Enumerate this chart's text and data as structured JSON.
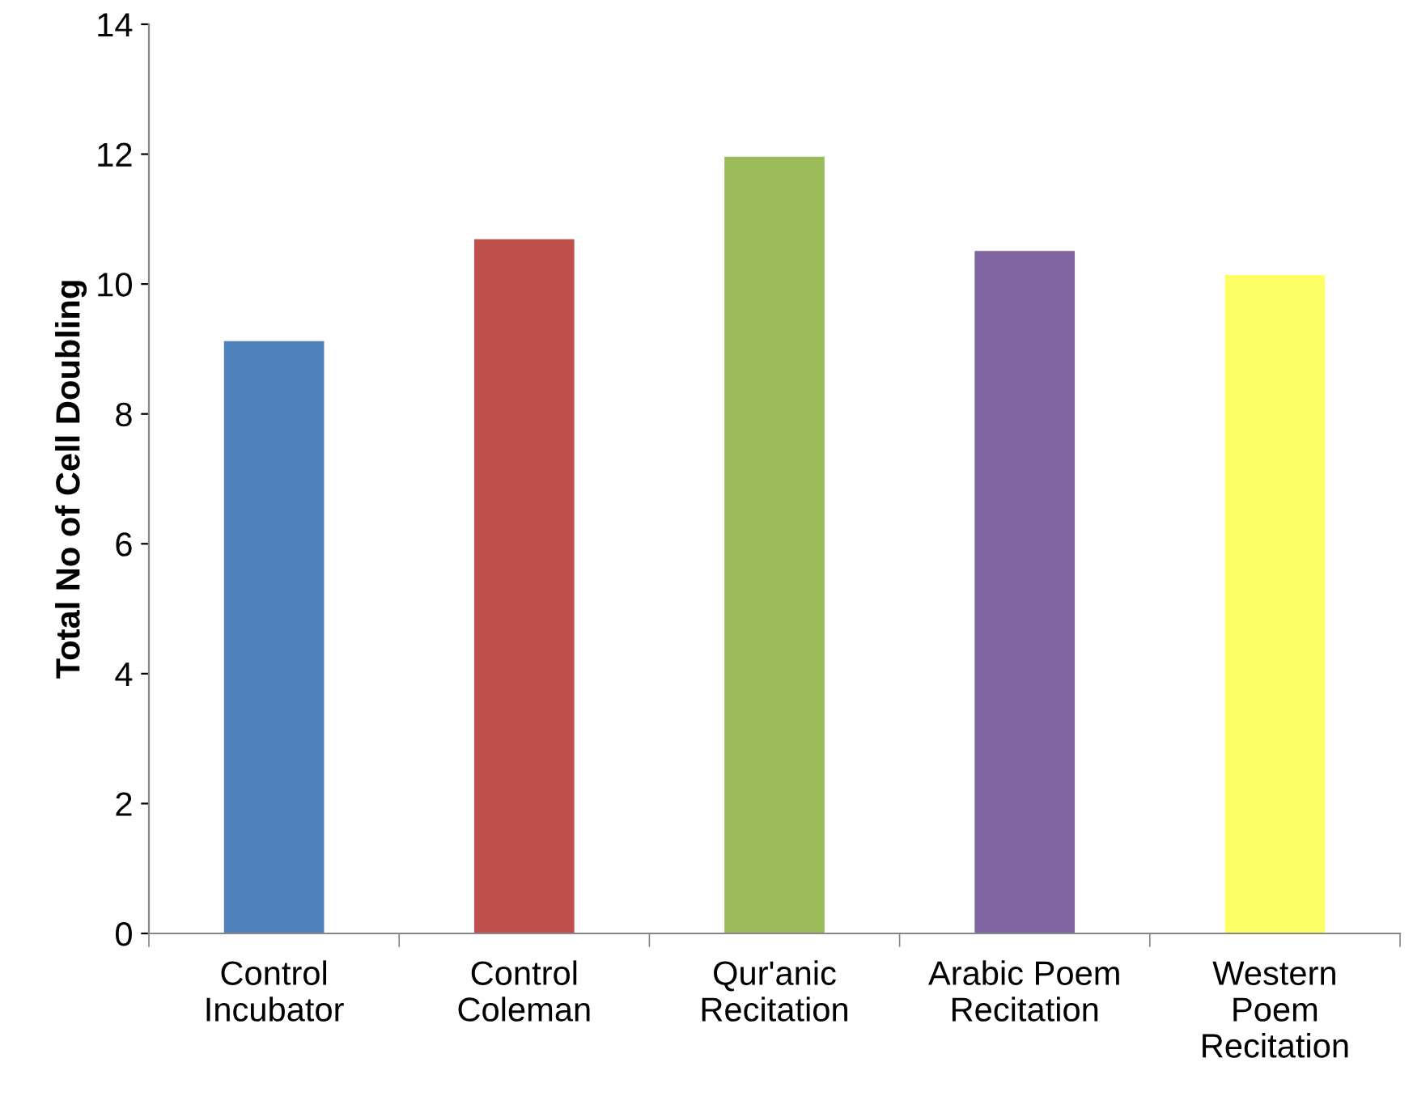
{
  "chart_data": {
    "type": "bar",
    "ylabel": "Total No of Cell Doubling",
    "categories": [
      "Control\nIncubator",
      "Control\nColeman",
      "Qur'anic\nRecitation",
      "Arabic Poem\nRecitation",
      "Western\nPoem\nRecitation"
    ],
    "values": [
      9.12,
      10.69,
      11.96,
      10.51,
      10.14
    ],
    "colors": [
      "#4f81bd",
      "#c0504d",
      "#9bbb59",
      "#8064a2",
      "#ffff66"
    ],
    "ylim": [
      0,
      14
    ],
    "yticks": [
      0,
      2,
      4,
      6,
      8,
      10,
      12,
      14
    ],
    "grid": false
  }
}
